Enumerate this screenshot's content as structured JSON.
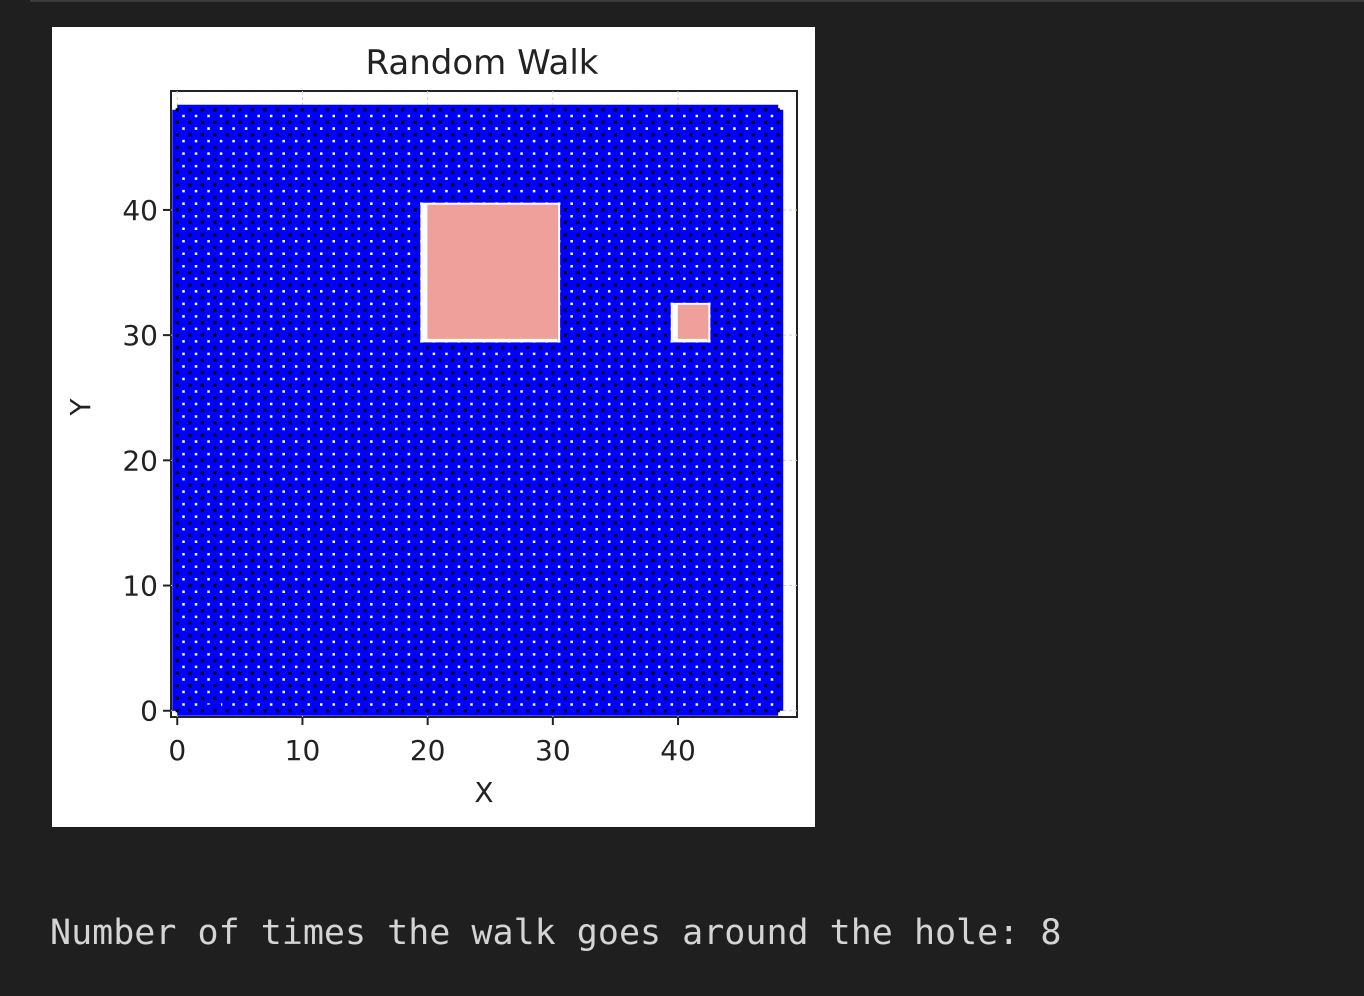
{
  "chart_data": {
    "type": "scatter",
    "title": "Random Walk",
    "xlabel": "X",
    "ylabel": "Y",
    "xlim": [
      -0.5,
      49.5
    ],
    "ylim": [
      -0.5,
      49.5
    ],
    "x_ticks": [
      0,
      10,
      20,
      30,
      40
    ],
    "y_ticks": [
      0,
      10,
      20,
      30,
      40
    ],
    "grid": true,
    "grid_range": [
      0,
      48
    ],
    "grid_points_color": "#000000",
    "walk_color": "#0000ff",
    "holes": [
      {
        "x": [
          19.5,
          30.5
        ],
        "y": [
          29.5,
          40.5
        ],
        "color": "#f0a09a"
      },
      {
        "x": [
          39.5,
          42.5
        ],
        "y": [
          29.5,
          32.5
        ],
        "color": "#f0a09a"
      }
    ]
  },
  "output": {
    "text": "Number of times the walk goes around the hole: 8"
  }
}
